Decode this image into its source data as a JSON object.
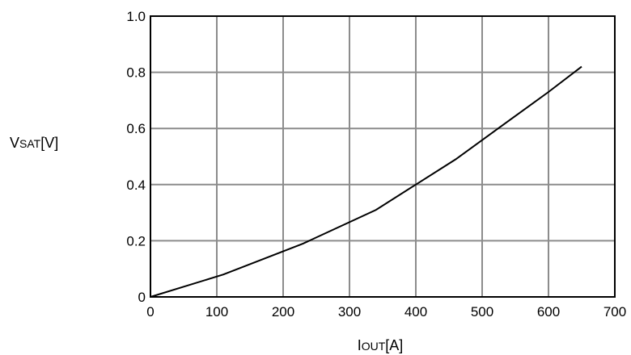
{
  "chart_data": {
    "type": "line",
    "title": "",
    "xlabel": {
      "main": "I",
      "sub": "OUT",
      "unit": "[A]"
    },
    "ylabel": {
      "main": "V",
      "sub": "SAT",
      "unit": "[V]"
    },
    "xlim": [
      0,
      700
    ],
    "ylim": [
      0,
      1.0
    ],
    "x_ticks": [
      "0",
      "100",
      "200",
      "300",
      "400",
      "500",
      "600",
      "700"
    ],
    "y_ticks": [
      "0",
      "0.2",
      "0.4",
      "0.6",
      "0.8",
      "1.0"
    ],
    "grid": true,
    "series": [
      {
        "x": [
          0,
          110,
          230,
          340,
          400,
          460,
          530,
          600,
          650
        ],
        "y": [
          0.0,
          0.08,
          0.19,
          0.31,
          0.4,
          0.49,
          0.61,
          0.73,
          0.82
        ]
      }
    ],
    "colors": {
      "line": "#000000",
      "grid": "#8c8c8c",
      "frame": "#000000"
    }
  }
}
